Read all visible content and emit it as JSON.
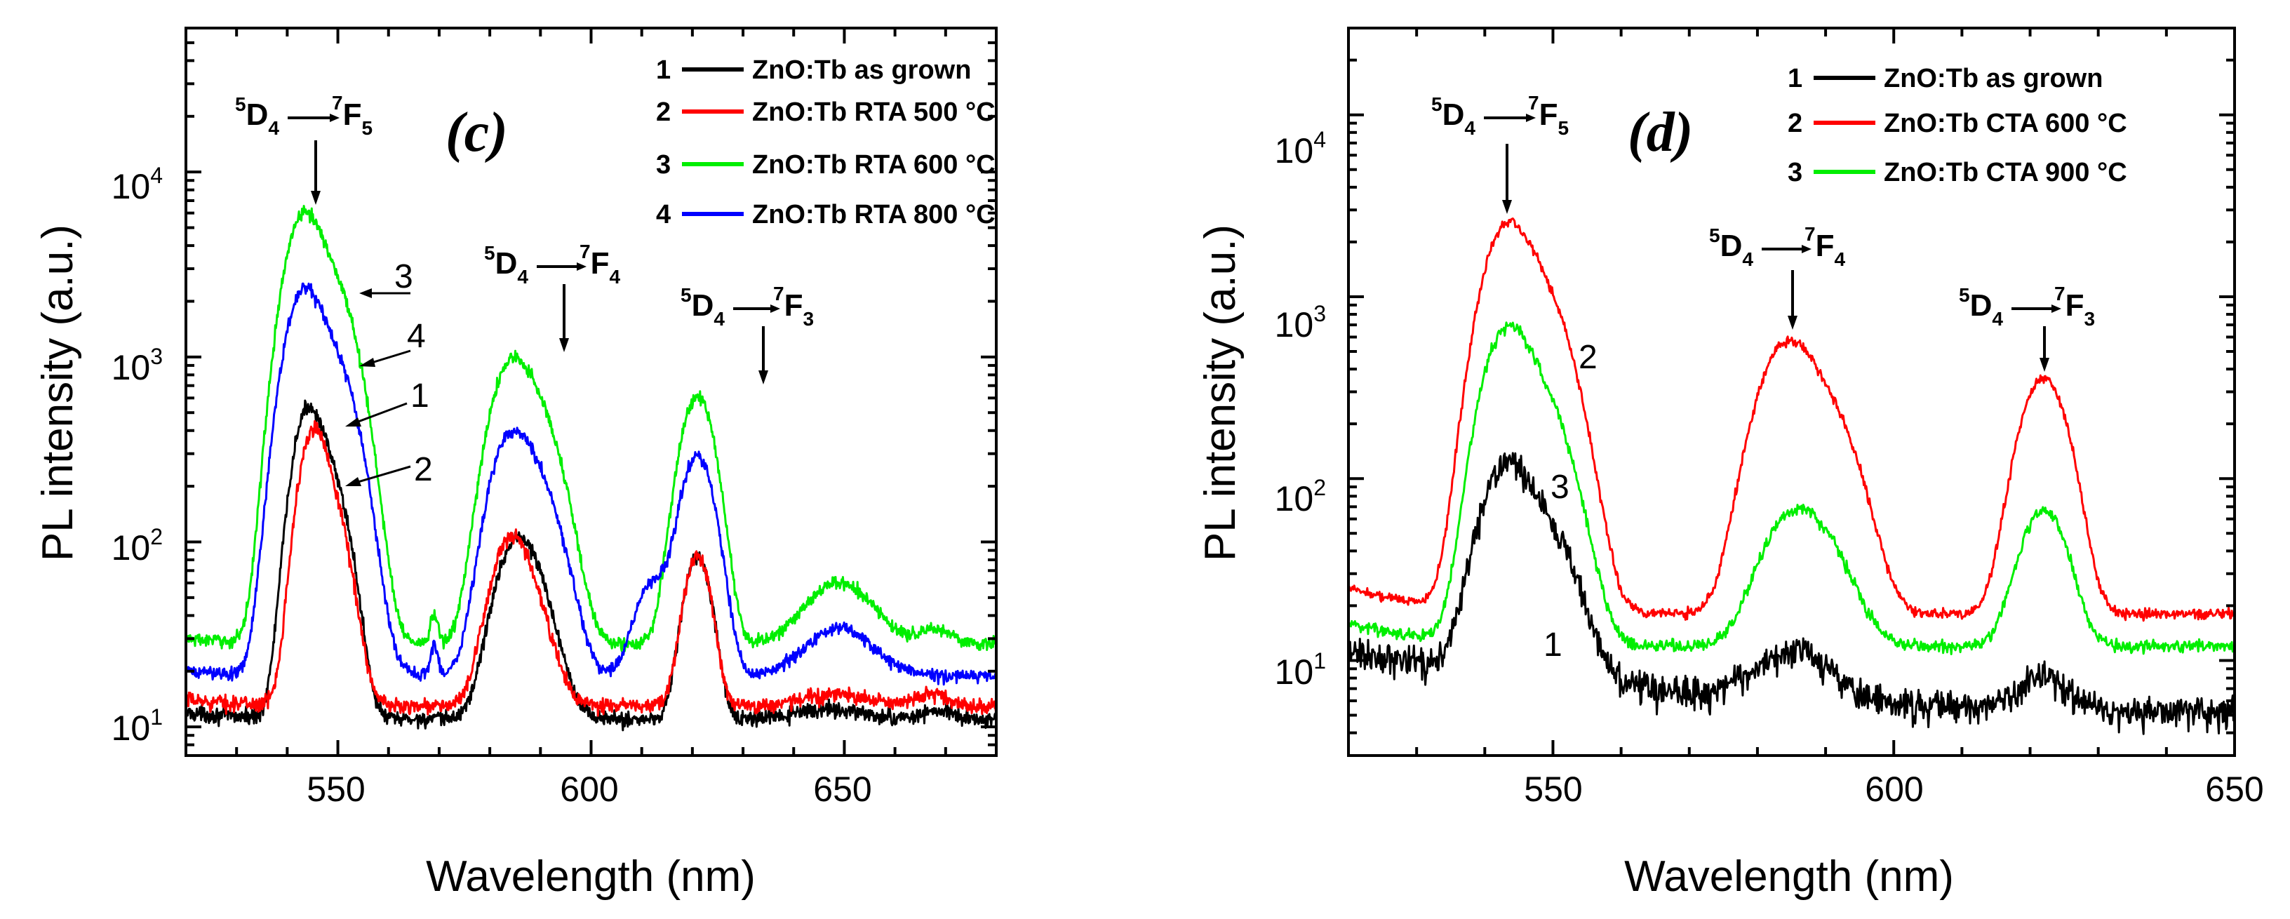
{
  "chart_data": [
    {
      "type": "line",
      "panel_label": "(c)",
      "xlabel": "Wavelength (nm)",
      "ylabel": "PL intensity (a.u.)",
      "xlim": [
        520,
        680
      ],
      "ylim": [
        7,
        60000
      ],
      "yscale": "log",
      "x_ticks": [
        550,
        600,
        650
      ],
      "x_tick_labels": [
        "550",
        "600",
        "650"
      ],
      "y_ticks": [
        10,
        100,
        1000,
        10000
      ],
      "y_tick_labels": [
        {
          "base": "10",
          "exp": "1"
        },
        {
          "base": "10",
          "exp": "2"
        },
        {
          "base": "10",
          "exp": "3"
        },
        {
          "base": "10",
          "exp": "4"
        }
      ],
      "legend_position": "top-right",
      "series": [
        {
          "name": "ZnO:Tb as grown",
          "number": "1",
          "color": "#000000",
          "baseline": 11,
          "noise": 0.06,
          "start": 12,
          "peaks": [
            [
              544,
              480,
              2.6
            ],
            [
              549,
              180,
              3.0
            ],
            [
              585,
              75,
              3.6
            ],
            [
              589,
              30,
              4.0
            ],
            [
              621,
              72,
              2.4
            ],
            [
              647,
              1.5,
              6
            ],
            [
              668,
              1.2,
              3
            ]
          ]
        },
        {
          "name": "ZnO:Tb RTA 500 °C",
          "number": "2",
          "color": "#ff0000",
          "baseline": 13,
          "noise": 0.06,
          "start": 14,
          "peaks": [
            [
              545,
              340,
              2.5
            ],
            [
              549,
              120,
              3.0
            ],
            [
              584,
              85,
              3.4
            ],
            [
              589,
              20,
              3.5
            ],
            [
              621,
              72,
              2.3
            ],
            [
              648,
              2,
              6
            ],
            [
              667,
              2,
              3
            ]
          ]
        },
        {
          "name": "ZnO:Tb RTA 600 °C",
          "number": "3",
          "color": "#00ee00",
          "baseline": 28,
          "noise": 0.05,
          "start": 30,
          "peaks": [
            [
              543,
              5200,
              3.2
            ],
            [
              549,
              2300,
              4.0
            ],
            [
              584,
              820,
              3.6
            ],
            [
              590,
              380,
              4.0
            ],
            [
              621,
              580,
              3.0
            ],
            [
              649,
              32,
              6.0
            ],
            [
              668,
              6,
              3
            ],
            [
              569,
              12,
              0.7
            ]
          ]
        },
        {
          "name": "ZnO:Tb RTA 800 °C",
          "number": "4",
          "color": "#0000ff",
          "baseline": 19,
          "noise": 0.05,
          "start": 20,
          "peaks": [
            [
              543,
              2000,
              3.2
            ],
            [
              549,
              900,
              4.0
            ],
            [
              584,
              330,
              3.6
            ],
            [
              590,
              150,
              4.0
            ],
            [
              621,
              270,
              3.0
            ],
            [
              612,
              40,
              3.0
            ],
            [
              649,
              15,
              6.0
            ],
            [
              569,
              9,
              0.7
            ]
          ]
        }
      ],
      "transitions": [
        {
          "upper_sup": "5",
          "upper": "D",
          "upper_sub": "4",
          "lower_sup": "7",
          "lower": "F",
          "lower_sub": "5",
          "x": 544
        },
        {
          "upper_sup": "5",
          "upper": "D",
          "upper_sub": "4",
          "lower_sup": "7",
          "lower": "F",
          "lower_sub": "4",
          "x": 587
        },
        {
          "upper_sup": "5",
          "upper": "D",
          "upper_sub": "4",
          "lower_sup": "7",
          "lower": "F",
          "lower_sub": "3",
          "x": 621
        }
      ],
      "curve_labels": [
        "3",
        "4",
        "1",
        "2"
      ]
    },
    {
      "type": "line",
      "panel_label": "(d)",
      "xlabel": "Wavelength (nm)",
      "ylabel": "PL intensity (a.u.)",
      "xlim": [
        520,
        650
      ],
      "ylim": [
        3,
        30000
      ],
      "yscale": "log",
      "x_ticks": [
        550,
        600,
        650
      ],
      "x_tick_labels": [
        "550",
        "600",
        "650"
      ],
      "y_ticks": [
        10,
        100,
        1000,
        10000
      ],
      "y_tick_labels": [
        {
          "base": "10",
          "exp": "1"
        },
        {
          "base": "10",
          "exp": "2"
        },
        {
          "base": "10",
          "exp": "3"
        },
        {
          "base": "10",
          "exp": "4"
        }
      ],
      "legend_position": "top-right",
      "series": [
        {
          "name": "ZnO:Tb as grown",
          "number": "1",
          "color": "#000000",
          "baseline": 5,
          "noise": 0.12,
          "start": 11,
          "decay": 40,
          "peaks": [
            [
              543,
              100,
              3.2
            ],
            [
              549,
              40,
              3.8
            ],
            [
              585,
              5,
              5
            ],
            [
              622,
              3,
              3
            ]
          ]
        },
        {
          "name": "ZnO:Tb CTA 600 °C",
          "number": "2",
          "color": "#ff0000",
          "baseline": 18,
          "noise": 0.04,
          "start": 25,
          "peaks": [
            [
              543,
              2100,
              3.0
            ],
            [
              548,
              1000,
              3.8
            ],
            [
              584,
              480,
              3.6
            ],
            [
              590,
              200,
              4.0
            ],
            [
              622,
              340,
              3.0
            ]
          ]
        },
        {
          "name": "ZnO:Tb CTA 900 °C",
          "number": "3",
          "color": "#00ee00",
          "baseline": 12,
          "noise": 0.05,
          "start": 16,
          "peaks": [
            [
              543,
              560,
              3.0
            ],
            [
              548,
              250,
              3.8
            ],
            [
              585,
              45,
              4.0
            ],
            [
              590,
              20,
              4.0
            ],
            [
              622,
              55,
              3.0
            ]
          ]
        }
      ],
      "transitions": [
        {
          "upper_sup": "5",
          "upper": "D",
          "upper_sub": "4",
          "lower_sup": "7",
          "lower": "F",
          "lower_sub": "5",
          "x": 544
        },
        {
          "upper_sup": "5",
          "upper": "D",
          "upper_sub": "4",
          "lower_sup": "7",
          "lower": "F",
          "lower_sub": "4",
          "x": 586
        },
        {
          "upper_sup": "5",
          "upper": "D",
          "upper_sub": "4",
          "lower_sup": "7",
          "lower": "F",
          "lower_sub": "3",
          "x": 622
        }
      ],
      "curve_labels": [
        "2",
        "3",
        "1"
      ]
    }
  ]
}
